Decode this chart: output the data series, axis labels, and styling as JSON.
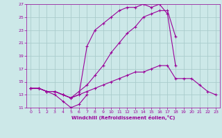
{
  "xlabel": "Windchill (Refroidissement éolien,°C)",
  "xlim": [
    -0.5,
    23.5
  ],
  "ylim": [
    11,
    27
  ],
  "yticks": [
    11,
    13,
    15,
    17,
    19,
    21,
    23,
    25,
    27
  ],
  "xticks": [
    0,
    1,
    2,
    3,
    4,
    5,
    6,
    7,
    8,
    9,
    10,
    11,
    12,
    13,
    14,
    15,
    16,
    17,
    18,
    19,
    20,
    21,
    22,
    23
  ],
  "bg_color": "#cce8e8",
  "grid_color": "#aacccc",
  "line_color": "#990099",
  "series": [
    {
      "x": [
        0,
        1,
        2,
        3,
        4,
        5,
        6,
        7
      ],
      "y": [
        14.0,
        14.0,
        13.5,
        13.0,
        12.0,
        11.0,
        11.5,
        13.0
      ]
    },
    {
      "x": [
        0,
        1,
        2,
        3,
        4,
        5,
        6,
        7,
        8,
        9,
        10,
        11,
        12,
        13,
        14,
        15,
        16,
        17,
        18,
        19,
        20,
        21,
        22,
        23
      ],
      "y": [
        14.0,
        14.0,
        13.5,
        13.5,
        13.0,
        12.5,
        13.0,
        13.5,
        14.0,
        14.5,
        15.0,
        15.5,
        16.0,
        16.5,
        16.5,
        17.0,
        17.5,
        17.5,
        15.5,
        15.5,
        15.5,
        14.5,
        13.5,
        13.0
      ]
    },
    {
      "x": [
        0,
        1,
        2,
        3,
        4,
        5,
        6,
        7,
        8,
        9,
        10,
        11,
        12,
        13,
        14,
        15,
        16,
        17,
        18
      ],
      "y": [
        14.0,
        14.0,
        13.5,
        13.5,
        13.0,
        12.5,
        13.5,
        14.5,
        16.0,
        17.5,
        19.5,
        21.0,
        22.5,
        23.5,
        25.0,
        25.5,
        26.0,
        26.0,
        22.0
      ]
    },
    {
      "x": [
        0,
        1,
        2,
        3,
        4,
        5,
        6,
        7,
        8,
        9,
        10,
        11,
        12,
        13,
        14,
        15,
        16,
        17,
        18
      ],
      "y": [
        14.0,
        14.0,
        13.5,
        13.5,
        13.0,
        12.5,
        13.0,
        20.5,
        23.0,
        24.0,
        25.0,
        26.0,
        26.5,
        26.5,
        27.0,
        26.5,
        27.0,
        25.5,
        17.5
      ]
    }
  ]
}
